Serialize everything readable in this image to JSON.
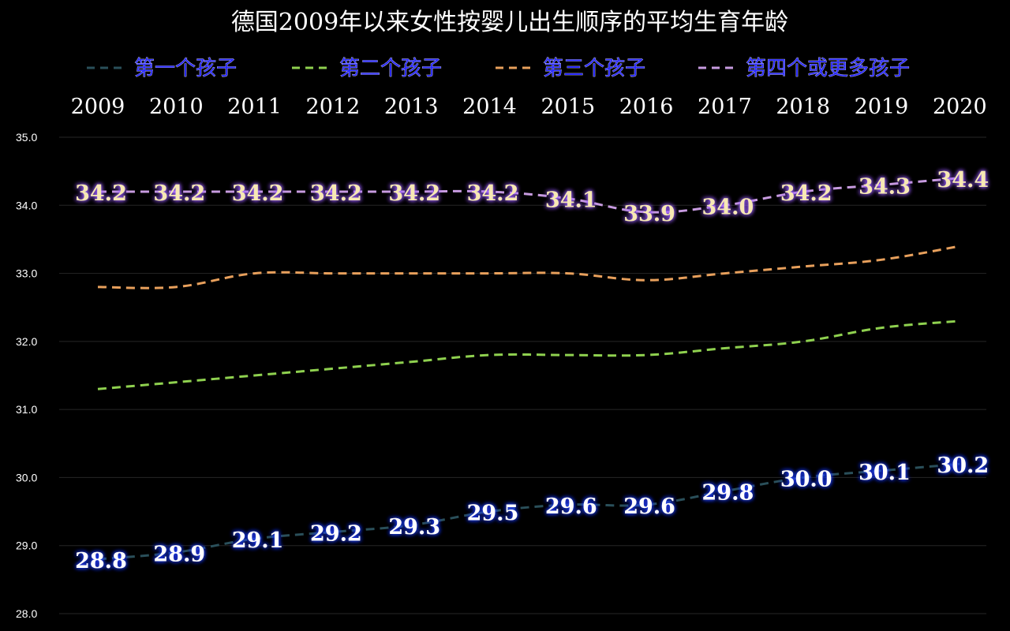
{
  "chart_data": {
    "type": "line",
    "title": "德国2009年以来女性按婴儿出生顺序的平均生育年龄",
    "categories": [
      "2009",
      "2010",
      "2011",
      "2012",
      "2013",
      "2014",
      "2015",
      "2016",
      "2017",
      "2018",
      "2019",
      "2020"
    ],
    "ylim": [
      28.0,
      35.0
    ],
    "yticks": [
      "28.0",
      "29.0",
      "30.0",
      "31.0",
      "32.0",
      "33.0",
      "34.0",
      "35.0"
    ],
    "grid": true,
    "legend_position": "top",
    "x_axis_position": "top",
    "series": [
      {
        "name": "第一个孩子",
        "color": "#2a4f5a",
        "values": [
          28.8,
          28.9,
          29.1,
          29.2,
          29.3,
          29.5,
          29.6,
          29.6,
          29.8,
          30.0,
          30.1,
          30.2
        ],
        "labels": [
          "28.8",
          "28.9",
          "29.1",
          "29.2",
          "29.3",
          "29.5",
          "29.6",
          "29.6",
          "29.8",
          "30.0",
          "30.1",
          "30.2"
        ]
      },
      {
        "name": "第二个孩子",
        "color": "#8fd14f",
        "values": [
          31.3,
          31.4,
          31.5,
          31.6,
          31.7,
          31.8,
          31.8,
          31.8,
          31.9,
          32.0,
          32.2,
          32.3
        ]
      },
      {
        "name": "第三个孩子",
        "color": "#e8a05c",
        "values": [
          32.8,
          32.8,
          33.0,
          33.0,
          33.0,
          33.0,
          33.0,
          32.9,
          33.0,
          33.1,
          33.2,
          33.4
        ]
      },
      {
        "name": "第四个或更多孩子",
        "color": "#c79be0",
        "values": [
          34.2,
          34.2,
          34.2,
          34.2,
          34.2,
          34.2,
          34.1,
          33.9,
          34.0,
          34.2,
          34.3,
          34.4
        ],
        "labels": [
          "34.2",
          "34.2",
          "34.2",
          "34.2",
          "34.2",
          "34.2",
          "34.1",
          "33.9",
          "34.0",
          "34.2",
          "34.3",
          "34.4"
        ]
      }
    ]
  }
}
